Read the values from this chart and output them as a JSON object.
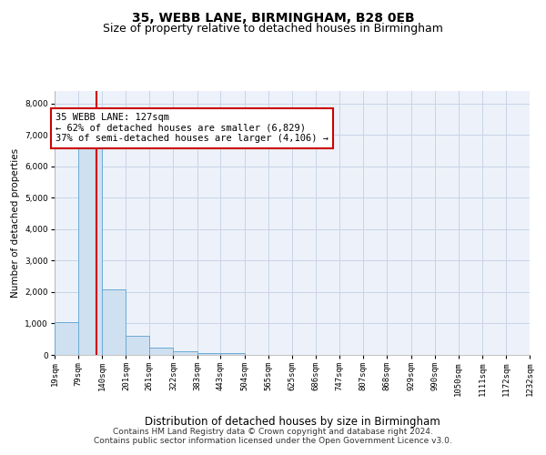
{
  "title": "35, WEBB LANE, BIRMINGHAM, B28 0EB",
  "subtitle": "Size of property relative to detached houses in Birmingham",
  "xlabel": "Distribution of detached houses by size in Birmingham",
  "ylabel": "Number of detached properties",
  "footer_line1": "Contains HM Land Registry data © Crown copyright and database right 2024.",
  "footer_line2": "Contains public sector information licensed under the Open Government Licence v3.0.",
  "annotation_line1": "35 WEBB LANE: 127sqm",
  "annotation_line2": "← 62% of detached houses are smaller (6,829)",
  "annotation_line3": "37% of semi-detached houses are larger (4,106) →",
  "property_size": 127,
  "bin_edges": [
    19,
    79,
    140,
    201,
    261,
    322,
    383,
    443,
    504,
    565,
    625,
    686,
    747,
    807,
    868,
    929,
    990,
    1050,
    1111,
    1172,
    1232
  ],
  "bar_heights": [
    1050,
    6700,
    2100,
    600,
    220,
    110,
    70,
    50,
    0,
    0,
    0,
    0,
    0,
    0,
    0,
    0,
    0,
    0,
    0,
    0
  ],
  "bar_color": "#cfe0f0",
  "bar_edge_color": "#6aaad4",
  "vline_color": "#cc0000",
  "vline_x": 127,
  "annotation_box_color": "#cc0000",
  "ylim": [
    0,
    8400
  ],
  "yticks": [
    0,
    1000,
    2000,
    3000,
    4000,
    5000,
    6000,
    7000,
    8000
  ],
  "grid_color": "#c8d4e8",
  "background_color": "#edf2fa",
  "title_fontsize": 10,
  "subtitle_fontsize": 9,
  "annot_fontsize": 7.5,
  "ylabel_fontsize": 7.5,
  "xlabel_fontsize": 8.5,
  "footer_fontsize": 6.5,
  "tick_fontsize": 6.5
}
